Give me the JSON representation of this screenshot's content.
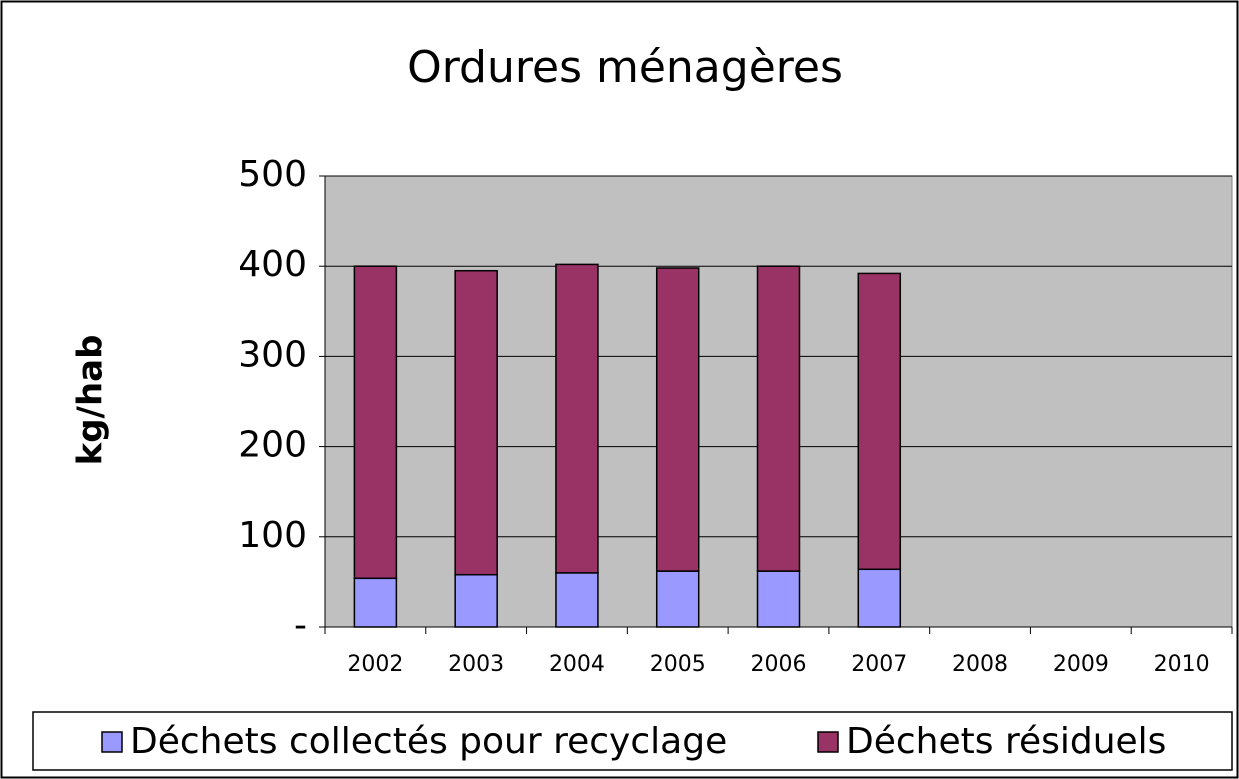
{
  "chart_data": {
    "type": "stacked_bar",
    "title": "Ordures ménagères",
    "y_label": "kg/hab",
    "categories": [
      "2002",
      "2003",
      "2004",
      "2005",
      "2006",
      "2007",
      "2008",
      "2009",
      "2010"
    ],
    "series": [
      {
        "name": "Déchets collectés pour recyclage",
        "color": "#9999ff",
        "values": [
          54,
          58,
          60,
          62,
          62,
          64,
          null,
          null,
          null
        ]
      },
      {
        "name": "Déchets résiduels",
        "color": "#993366",
        "values": [
          346,
          337,
          342,
          336,
          338,
          328,
          null,
          null,
          null
        ]
      }
    ],
    "ylim": [
      0,
      500
    ],
    "yticks": [
      {
        "value": 0,
        "label": "-"
      },
      100,
      200,
      300,
      400,
      500
    ],
    "grid": true,
    "plot_background": "#c0c0c0",
    "legend": "bottom"
  }
}
